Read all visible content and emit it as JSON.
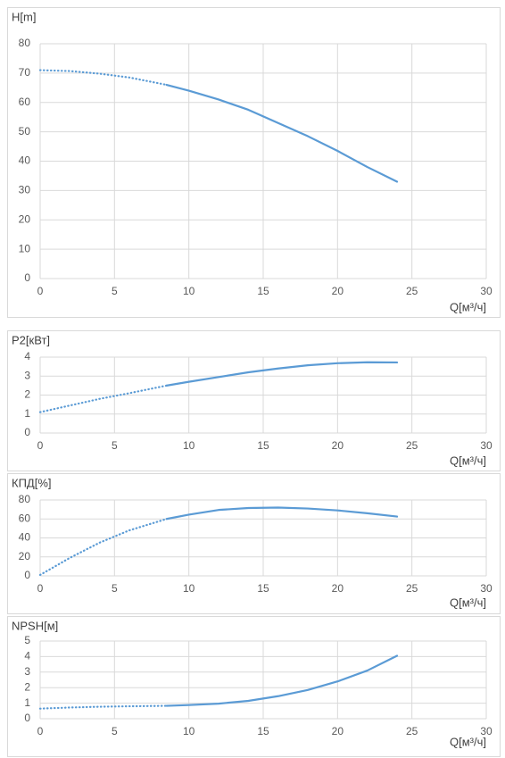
{
  "chart_data": [
    {
      "type": "line",
      "y_label": "H[m]",
      "x_label": "Q[м³/ч]",
      "xlim": [
        0,
        30
      ],
      "xticks": [
        0,
        5,
        10,
        15,
        20,
        25,
        30
      ],
      "ylim": [
        0,
        80
      ],
      "yticks": [
        0,
        10,
        20,
        30,
        40,
        50,
        60,
        70,
        80
      ],
      "grid": true,
      "series": [
        {
          "color": "#5b9bd5",
          "line_style": "dotted",
          "x": [
            0,
            2,
            4,
            6,
            8.5
          ],
          "values": [
            71,
            70.7,
            69.8,
            68.5,
            66
          ]
        },
        {
          "color": "#5b9bd5",
          "line_style": "solid",
          "x": [
            8.5,
            10,
            12,
            14,
            16,
            18,
            20,
            22,
            24
          ],
          "values": [
            66,
            64,
            61,
            57.5,
            53,
            48.5,
            43.5,
            38,
            33
          ]
        }
      ]
    },
    {
      "type": "line",
      "y_label": "P2[кВт]",
      "x_label": "Q[м³/ч]",
      "xlim": [
        0,
        30
      ],
      "xticks": [
        0,
        5,
        10,
        15,
        20,
        25,
        30
      ],
      "ylim": [
        0,
        4
      ],
      "yticks": [
        0,
        1,
        2,
        3,
        4
      ],
      "grid": true,
      "series": [
        {
          "color": "#5b9bd5",
          "line_style": "dotted",
          "x": [
            0,
            2,
            4,
            6,
            8.5
          ],
          "values": [
            1.1,
            1.45,
            1.8,
            2.1,
            2.5
          ]
        },
        {
          "color": "#5b9bd5",
          "line_style": "solid",
          "x": [
            8.5,
            10,
            12,
            14,
            16,
            18,
            20,
            22,
            24
          ],
          "values": [
            2.5,
            2.7,
            2.95,
            3.2,
            3.4,
            3.57,
            3.68,
            3.73,
            3.72
          ]
        }
      ]
    },
    {
      "type": "line",
      "y_label": "КПД[%]",
      "x_label": "Q[м³/ч]",
      "xlim": [
        0,
        30
      ],
      "xticks": [
        0,
        5,
        10,
        15,
        20,
        25,
        30
      ],
      "ylim": [
        0,
        80
      ],
      "yticks": [
        0,
        20,
        40,
        60,
        80
      ],
      "grid": true,
      "series": [
        {
          "color": "#5b9bd5",
          "line_style": "dotted",
          "x": [
            0,
            2,
            4,
            6,
            8.5
          ],
          "values": [
            1,
            19,
            35,
            48,
            60
          ]
        },
        {
          "color": "#5b9bd5",
          "line_style": "solid",
          "x": [
            8.5,
            10,
            12,
            14,
            16,
            18,
            20,
            22,
            24
          ],
          "values": [
            60,
            64.5,
            69.5,
            71.5,
            72,
            71,
            69,
            66,
            62.5
          ]
        }
      ]
    },
    {
      "type": "line",
      "y_label": "NPSH[м]",
      "x_label": "Q[м³/ч]",
      "xlim": [
        0,
        30
      ],
      "xticks": [
        0,
        5,
        10,
        15,
        20,
        25,
        30
      ],
      "ylim": [
        0,
        5
      ],
      "yticks": [
        0,
        1,
        2,
        3,
        4,
        5
      ],
      "grid": true,
      "series": [
        {
          "color": "#5b9bd5",
          "line_style": "dotted",
          "x": [
            0,
            2,
            4,
            6,
            8.5
          ],
          "values": [
            0.65,
            0.72,
            0.77,
            0.8,
            0.83
          ]
        },
        {
          "color": "#5b9bd5",
          "line_style": "solid",
          "x": [
            8.5,
            10,
            12,
            14,
            16,
            18,
            20,
            22,
            24
          ],
          "values": [
            0.83,
            0.88,
            0.97,
            1.15,
            1.45,
            1.85,
            2.4,
            3.1,
            4.05
          ]
        }
      ]
    }
  ]
}
